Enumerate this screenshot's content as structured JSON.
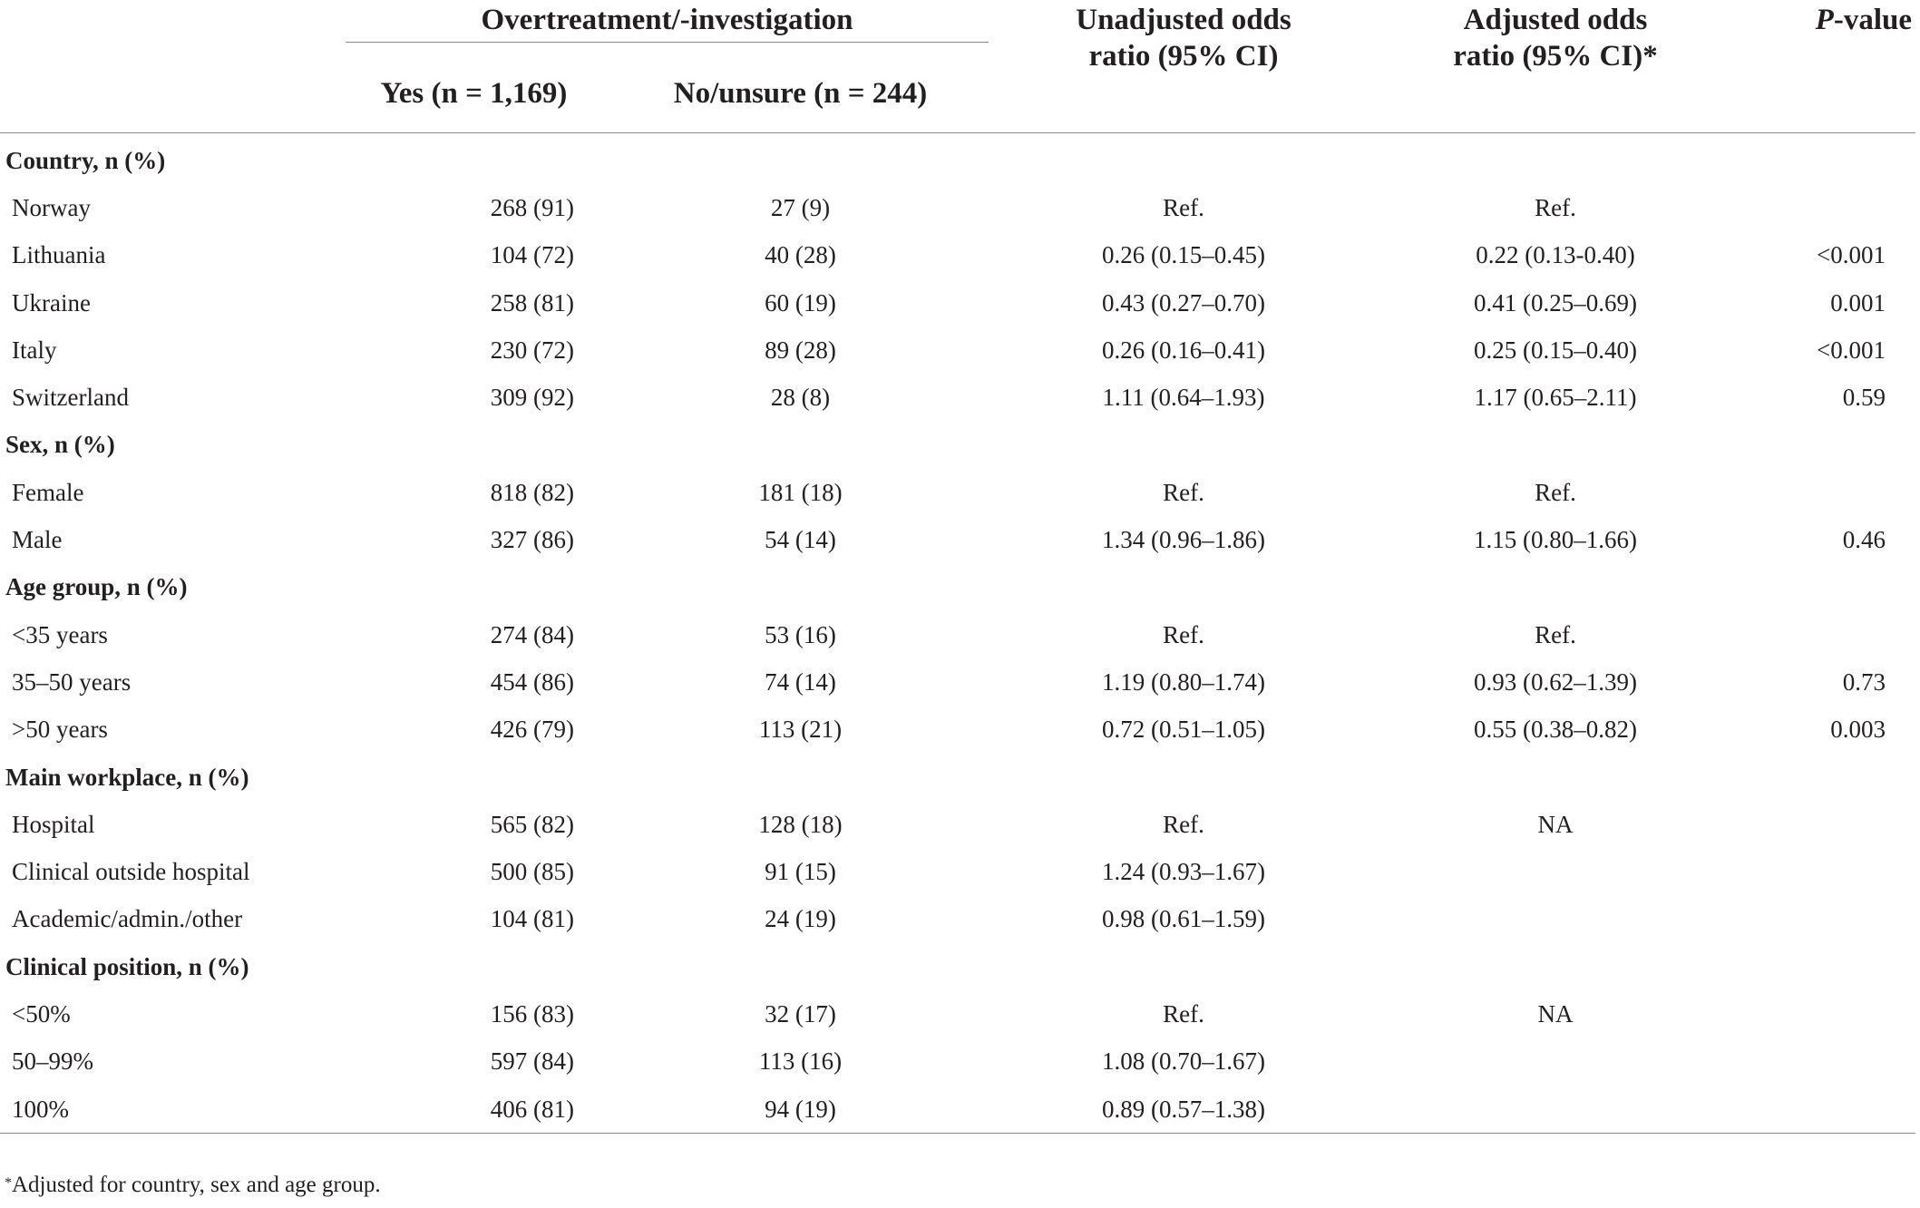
{
  "header": {
    "group_label": "Overtreatment/-investigation",
    "yes_label": "Yes (n = 1,169)",
    "no_label": "No/unsure (n = 244)",
    "unadj_line1": "Unadjusted odds",
    "unadj_line2": "ratio (95% CI)",
    "adj_line1": "Adjusted odds",
    "adj_line2": "ratio (95% CI)*",
    "p_italic": "P",
    "p_rest": "-value"
  },
  "rows": [
    {
      "type": "section",
      "label": "Country, n (%)"
    },
    {
      "type": "data",
      "label": "Norway",
      "yes": "268 (91)",
      "no": "27 (9)",
      "unadj": "Ref.",
      "adj": "Ref.",
      "p": ""
    },
    {
      "type": "data",
      "label": "Lithuania",
      "yes": "104 (72)",
      "no": "40 (28)",
      "unadj": "0.26 (0.15–0.45)",
      "adj": "0.22 (0.13-0.40)",
      "p": "<0.001"
    },
    {
      "type": "data",
      "label": "Ukraine",
      "yes": "258 (81)",
      "no": "60 (19)",
      "unadj": "0.43 (0.27–0.70)",
      "adj": "0.41 (0.25–0.69)",
      "p": "0.001"
    },
    {
      "type": "data",
      "label": "Italy",
      "yes": "230 (72)",
      "no": "89 (28)",
      "unadj": "0.26 (0.16–0.41)",
      "adj": "0.25 (0.15–0.40)",
      "p": "<0.001"
    },
    {
      "type": "data",
      "label": "Switzerland",
      "yes": "309 (92)",
      "no": "28 (8)",
      "unadj": "1.11 (0.64–1.93)",
      "adj": "1.17 (0.65–2.11)",
      "p": "0.59"
    },
    {
      "type": "section",
      "label": "Sex, n (%)"
    },
    {
      "type": "data",
      "label": "Female",
      "yes": "818 (82)",
      "no": "181 (18)",
      "unadj": "Ref.",
      "adj": "Ref.",
      "p": ""
    },
    {
      "type": "data",
      "label": "Male",
      "yes": "327 (86)",
      "no": "54 (14)",
      "unadj": "1.34 (0.96–1.86)",
      "adj": "1.15 (0.80–1.66)",
      "p": "0.46"
    },
    {
      "type": "section",
      "label": "Age group, n (%)"
    },
    {
      "type": "data",
      "label": "<35 years",
      "yes": "274 (84)",
      "no": "53 (16)",
      "unadj": "Ref.",
      "adj": "Ref.",
      "p": ""
    },
    {
      "type": "data",
      "label": "35–50 years",
      "yes": "454 (86)",
      "no": "74 (14)",
      "unadj": "1.19 (0.80–1.74)",
      "adj": "0.93 (0.62–1.39)",
      "p": "0.73"
    },
    {
      "type": "data",
      "label": ">50 years",
      "yes": "426 (79)",
      "no": "113 (21)",
      "unadj": "0.72 (0.51–1.05)",
      "adj": "0.55 (0.38–0.82)",
      "p": "0.003"
    },
    {
      "type": "section",
      "label": "Main workplace, n (%)"
    },
    {
      "type": "data",
      "label": "Hospital",
      "yes": "565 (82)",
      "no": "128 (18)",
      "unadj": "Ref.",
      "adj": "NA",
      "p": ""
    },
    {
      "type": "data",
      "label": "Clinical outside hospital",
      "yes": "500 (85)",
      "no": "91 (15)",
      "unadj": "1.24 (0.93–1.67)",
      "adj": "",
      "p": ""
    },
    {
      "type": "data",
      "label": "Academic/admin./other",
      "yes": "104 (81)",
      "no": "24 (19)",
      "unadj": "0.98 (0.61–1.59)",
      "adj": "",
      "p": ""
    },
    {
      "type": "section",
      "label": "Clinical position, n (%)"
    },
    {
      "type": "data",
      "label": "<50%",
      "yes": "156 (83)",
      "no": "32 (17)",
      "unadj": "Ref.",
      "adj": "NA",
      "p": ""
    },
    {
      "type": "data",
      "label": "50–99%",
      "yes": "597 (84)",
      "no": "113 (16)",
      "unadj": "1.08 (0.70–1.67)",
      "adj": "",
      "p": ""
    },
    {
      "type": "data",
      "label": "100%",
      "yes": "406 (81)",
      "no": "94 (19)",
      "unadj": "0.89 (0.57–1.38)",
      "adj": "",
      "p": ""
    }
  ],
  "footnote": {
    "marker": "*",
    "text": "Adjusted for country, sex and age group."
  }
}
